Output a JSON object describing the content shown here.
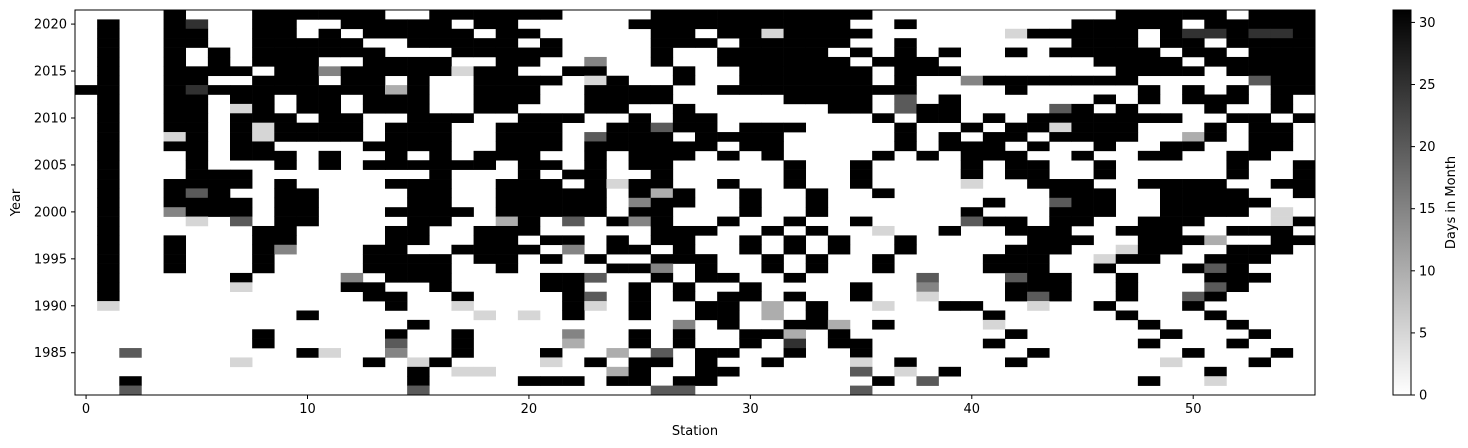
{
  "chart_data": {
    "type": "heatmap",
    "title": "",
    "xlabel": "Station",
    "ylabel": "Year",
    "xlim": [
      -0.5,
      55.5
    ],
    "ylim": [
      1980.5,
      2021.5
    ],
    "x_ticks": [
      0,
      10,
      20,
      30,
      40,
      50
    ],
    "y_ticks": [
      1985,
      1990,
      1995,
      2000,
      2005,
      2010,
      2015,
      2020
    ],
    "colorbar": {
      "label": "Days in Month",
      "min": 0,
      "max": 31,
      "ticks": [
        0,
        5,
        10,
        15,
        20,
        25,
        30
      ],
      "colormap": "binary (white to black)"
    },
    "rows_note": "each row string covers stations 0-55; character = days-in-month level: '.'=0, 1=~5, 2=~10, 3=~15, 4=~20, 5=~25, '#'=31",
    "rows": [
      {
        "year": 2021,
        "data": "....#...######..######....##########...........#####.#####"
      },
      {
        "year": 2020,
        "data": ".#..#5..##..#####.##.....##########..#.......#####.#####5"
      },
      {
        "year": 2019,
        "data": ".#..##..##.#.#####.##.....##.##1####......1#####.#55#55#"
      },
      {
        "year": 2018,
        "data": ".#..##..#####..#####.#....###.#####..#.......###.##.######"
      },
      {
        "year": 2017,
        "data": ".#..#.#.######...#####....#..#####.#.#.#..#.#####.##.#####"
      },
      {
        "year": 2016,
        "data": ".#..#.#.###..####..##..3..#..######.###.......####.######"
      },
      {
        "year": 2015,
        "data": ".#..####.##3#####1##..##...#..######.###.......####.####.."
      },
      {
        "year": 2014,
        "data": ".#..##..###.##.#..####.1#..#..######.#..3#######.....4##..."
      },
      {
        "year": 2013,
        "data": "##..#5########2#..###..####..#########....#.....#.#.#.##..."
      },
      {
        "year": 2012,
        "data": ".#..##.##.##.###..###..####.....####.4.#......#.#.###.#.#.."
      },
      {
        "year": 2011,
        "data": ".#..##.1#.##.###..##...##..#......##.4##....4#.#...#..#.4##.#"
      },
      {
        "year": 2010,
        "data": ".#..##.###.##..###..###..#.##.......#.##.#.#######..##.##..##"
      },
      {
        "year": 2009,
        "data": ".#..##.#1####.###..###..##4##.###....#..#.##1###...#.##.##..#"
      },
      {
        "year": 2008,
        "data": ".#..1#.#1####.###..###.4###.####.....#.#.##.####..2#.##.##3#"
      },
      {
        "year": 2007,
        "data": ".#..##.##....####..###.######.##.....#.###.#..#..##..##..##"
      },
      {
        "year": 2006,
        "data": ".#...#.###.#..#.#.###..#.###.#.#....#.#.###..#..##..##..##"
      },
      {
        "year": 2005,
        "data": ".#...#...#.#.######.##.#.##.....#..#....#.##..#.....#..##..."
      },
      {
        "year": 2004,
        "data": ".#...###........#...#.##..#.....#..#....#.##..#.....#..##.##"
      },
      {
        "year": 2003,
        "data": ".#..####.#....###..###.#1##..#..#..#....1..###..####..###."
      },
      {
        "year": 2002,
        "data": ".#..#4#..##....##..#####.#2#..#..#..#.......###..####..#####3"
      },
      {
        "year": 2001,
        "data": ".#..####.##....##..#####.3##..#..#.......#..4##..#####...#.#"
      },
      {
        "year": 2000,
        "data": ".#..3###.##...####.#####.##...#..#......#...###..####.1.3.#"
      },
      {
        "year": 1999,
        "data": ".#...1.4.##....##..2#.4.#3#..#..#..#....4##.##..###...1#4##"
      },
      {
        "year": 1998,
        "data": ".#......##....##..###.....###..#.#..1..#..###..###..###..##"
      },
      {
        "year": 1997,
        "data": ".#..#...##....##..##.##.#.##..#.#.#..#.....###..###2..###.#"
      },
      {
        "year": 1996,
        "data": ".#..#...#3...##..####.3.##.#..#.#.#..#....###..1##..###."
      },
      {
        "year": 1995,
        "data": ".#..#...#....####.##.#.#..###..#.#..#....###..1##..###."
      },
      {
        "year": 1994,
        "data": ".#..#...#....####..#....##3.#..#.#..#....###..#...#4#."
      },
      {
        "year": 1993,
        "data": ".#.....#....3.###....##4..#.##..#.....4...4##..#...###"
      },
      {
        "year": 1992,
        "data": ".#.....1....##..#....##..#.#..#....#..3...###..#...4#"
      },
      {
        "year": 1991,
        "data": ".#...........##..#....#4.#.#.##.#..#..1...#4#..#..4#."
      },
      {
        "year": 1990,
        "data": ".1............#..1....#1.#..##.2.#..1..##..1..#...#"
      },
      {
        "year": 1989,
        "data": "..........#.......1.1.#..#..##.2.#.......#.....#...#"
      },
      {
        "year": 1988,
        "data": "...............#...........3.#..##2.#....1......#...#"
      },
      {
        "year": 1987,
        "data": "........#.....#..#....3..#.#..##2.#.......#......#...#"
      },
      {
        "year": 1986,
        "data": "........#.....4..#....2..#.#..#.5.##.....#......#...#"
      },
      {
        "year": 1985,
        "data": "..4.......#1..3..#...#..2.4.##..#..#.......#......#...#.1"
      },
      {
        "year": 1984,
        "data": ".......1.....#.1#....1.#.##.#..#...1.#....#......1...#..##"
      },
      {
        "year": 1983,
        "data": "...............#.11.....2#..##.....4.1.#...........#....#.##"
      },
      {
        "year": 1982,
        "data": "..#............#....###.##.##.......#.4.........#..1.."
      },
      {
        "year": 1981,
        "data": "..4............4..........44.......4........................"
      }
    ]
  }
}
